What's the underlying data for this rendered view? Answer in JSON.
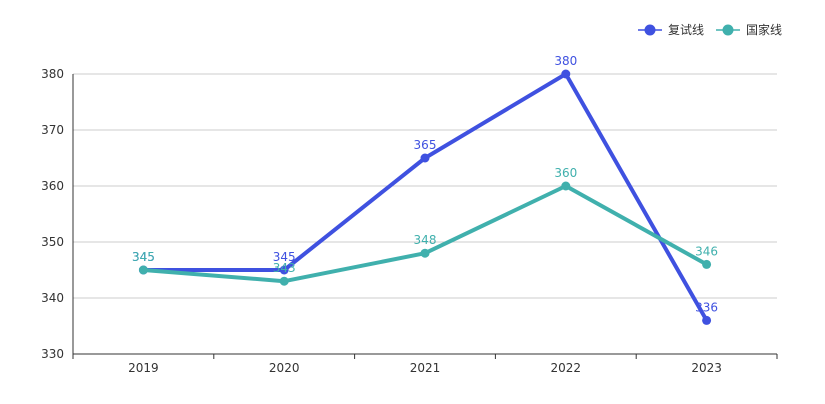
{
  "chart_data": {
    "type": "line",
    "categories": [
      "2019",
      "2020",
      "2021",
      "2022",
      "2023"
    ],
    "series": [
      {
        "name": "复试线",
        "color": "#3f51e0",
        "values": [
          345,
          345,
          365,
          380,
          336
        ]
      },
      {
        "name": "国家线",
        "color": "#40b0ad",
        "values": [
          345,
          343,
          348,
          360,
          346
        ]
      }
    ],
    "ylim": [
      330,
      380
    ],
    "yticks": [
      330,
      340,
      350,
      360,
      370,
      380
    ],
    "grid": true,
    "legend_position": "top-right"
  }
}
